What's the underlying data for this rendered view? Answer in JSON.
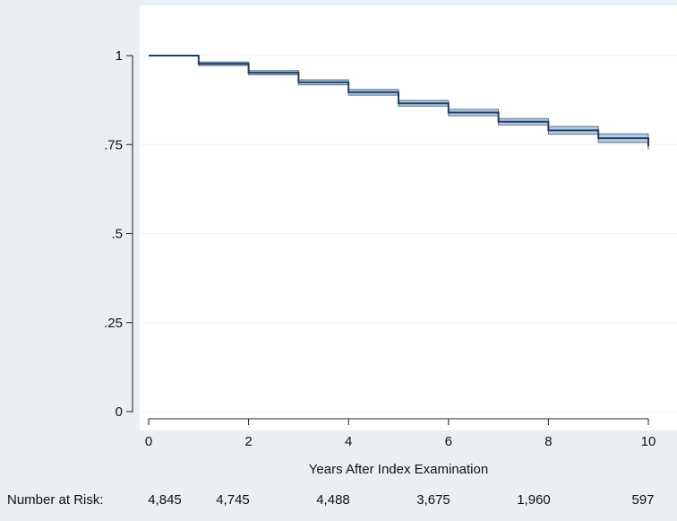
{
  "chart_data": {
    "type": "line",
    "title": "",
    "xlabel": "Years After Index Examination",
    "ylabel": "",
    "xlim": [
      0,
      10
    ],
    "ylim": [
      0,
      1
    ],
    "x_ticks": [
      0,
      2,
      4,
      6,
      8,
      10
    ],
    "x_tick_labels": [
      "0",
      "2",
      "4",
      "6",
      "8",
      "10"
    ],
    "y_ticks": [
      0,
      0.25,
      0.5,
      0.75,
      1
    ],
    "y_tick_labels": [
      "0",
      ".25",
      ".5",
      ".75",
      "1"
    ],
    "grid": "horizontal",
    "series": [
      {
        "style": "step",
        "x": [
          0,
          1,
          2,
          3,
          4,
          5,
          6,
          7,
          8,
          9,
          10
        ],
        "values": [
          1.0,
          0.977,
          0.952,
          0.925,
          0.897,
          0.866,
          0.84,
          0.814,
          0.79,
          0.768,
          0.745
        ],
        "ci_lower": [
          1.0,
          0.972,
          0.946,
          0.918,
          0.889,
          0.858,
          0.831,
          0.805,
          0.779,
          0.756,
          0.735
        ],
        "ci_upper": [
          1.0,
          0.982,
          0.958,
          0.932,
          0.905,
          0.874,
          0.849,
          0.823,
          0.801,
          0.78,
          0.755
        ]
      }
    ],
    "number_at_risk": {
      "label": "Number at Risk:",
      "x": [
        0,
        2,
        4,
        6,
        8,
        10
      ],
      "values": [
        "4,845",
        "4,745",
        "4,488",
        "3,675",
        "1,960",
        "597"
      ]
    }
  },
  "colors": {
    "background": "#e9eff3",
    "plot_area": "#ffffff",
    "line": "#1f3f66",
    "ci_band": "#7da0c4"
  }
}
